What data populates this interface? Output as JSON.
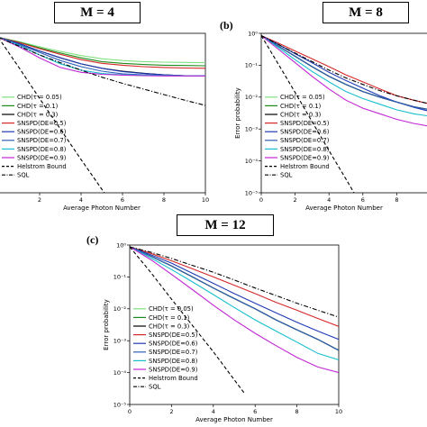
{
  "panels": {
    "a": {
      "title": "M = 4",
      "panel_label": ""
    },
    "b": {
      "title": "M = 8",
      "panel_label": "(b)"
    },
    "c": {
      "title": "M = 12",
      "panel_label": "(c)"
    }
  },
  "chart_data": [
    {
      "panel": "a",
      "type": "line",
      "title": "M = 4",
      "xlabel": "Average Photon Number",
      "ylabel": "",
      "yscale": "log",
      "xlim": [
        0,
        10
      ],
      "ylim": [
        1e-05,
        1
      ],
      "xticks": [
        "2",
        "4",
        "6",
        "8",
        "10"
      ],
      "yticks": [],
      "legend": "lower-left",
      "series": [
        {
          "name": "CHD(τ = 0.05)",
          "color": "#7fe07f",
          "style": "solid",
          "x": [
            0,
            1,
            2,
            3,
            4,
            5,
            6,
            7,
            8,
            9,
            10
          ],
          "y": [
            0.75,
            0.55,
            0.38,
            0.27,
            0.2,
            0.16,
            0.14,
            0.13,
            0.125,
            0.122,
            0.12
          ]
        },
        {
          "name": "CHD(τ = 0.1)",
          "color": "#1a8a1a",
          "style": "solid",
          "x": [
            0,
            1,
            2,
            3,
            4,
            5,
            6,
            7,
            8,
            9,
            10
          ],
          "y": [
            0.75,
            0.53,
            0.35,
            0.24,
            0.17,
            0.13,
            0.115,
            0.105,
            0.1,
            0.098,
            0.096
          ]
        },
        {
          "name": "CHD(τ = 0.3)",
          "color": "#000000",
          "style": "solid",
          "x": [
            0,
            1,
            2,
            3,
            4,
            5,
            6,
            7,
            8,
            9,
            10
          ],
          "y": [
            0.75,
            0.48,
            0.28,
            0.17,
            0.11,
            0.08,
            0.065,
            0.056,
            0.05,
            0.047,
            0.046
          ]
        },
        {
          "name": "SNSPD(DE=0.5)",
          "color": "#d62728",
          "style": "solid",
          "x": [
            0,
            1,
            2,
            3,
            4,
            5,
            6,
            7,
            8,
            9,
            10
          ],
          "y": [
            0.75,
            0.52,
            0.33,
            0.22,
            0.15,
            0.115,
            0.1,
            0.09,
            0.085,
            0.082,
            0.08
          ]
        },
        {
          "name": "SNSPD(DE=0.6)",
          "color": "#1f3ab4",
          "style": "solid",
          "x": [
            0,
            1,
            2,
            3,
            4,
            5,
            6,
            7,
            8,
            9,
            10
          ],
          "y": [
            0.75,
            0.48,
            0.28,
            0.17,
            0.11,
            0.08,
            0.063,
            0.055,
            0.05,
            0.047,
            0.046
          ]
        },
        {
          "name": "SNSPD(DE=0.7)",
          "color": "#2f5fb8",
          "style": "solid",
          "x": [
            0,
            1,
            2,
            3,
            4,
            5,
            6,
            7,
            8,
            9,
            10
          ],
          "y": [
            0.75,
            0.45,
            0.25,
            0.14,
            0.09,
            0.065,
            0.054,
            0.05,
            0.048,
            0.047,
            0.046
          ]
        },
        {
          "name": "SNSPD(DE=0.8)",
          "color": "#17becf",
          "style": "solid",
          "x": [
            0,
            1,
            2,
            3,
            4,
            5,
            6,
            7,
            8,
            9,
            10
          ],
          "y": [
            0.75,
            0.42,
            0.21,
            0.11,
            0.07,
            0.055,
            0.05,
            0.048,
            0.047,
            0.046,
            0.046
          ]
        },
        {
          "name": "SNSPD(DE=0.9)",
          "color": "#c026d3",
          "style": "solid",
          "x": [
            0,
            1,
            2,
            3,
            4,
            5,
            6,
            7,
            8,
            9,
            10
          ],
          "y": [
            0.75,
            0.38,
            0.17,
            0.085,
            0.06,
            0.052,
            0.049,
            0.047,
            0.046,
            0.046,
            0.046
          ]
        },
        {
          "name": "Helstrom Bound",
          "color": "#000000",
          "style": "dashed",
          "x": [
            0,
            1,
            2,
            3,
            4,
            5,
            5.5
          ],
          "y": [
            0.75,
            0.085,
            0.009,
            0.001,
            0.00011,
            1.3e-05,
            4.5e-06
          ]
        },
        {
          "name": "SQL",
          "color": "#000000",
          "style": "dashdot",
          "x": [
            0,
            1,
            2,
            3,
            4,
            5,
            6,
            7,
            8,
            9,
            10
          ],
          "y": [
            0.75,
            0.4,
            0.21,
            0.12,
            0.07,
            0.042,
            0.027,
            0.018,
            0.012,
            0.008,
            0.0055
          ]
        }
      ]
    },
    {
      "panel": "b",
      "type": "line",
      "title": "M = 8",
      "xlabel": "Average Photon Number",
      "ylabel": "Error probability",
      "yscale": "log",
      "xlim": [
        0,
        10
      ],
      "ylim": [
        1e-05,
        1
      ],
      "xticks": [
        "0",
        "2",
        "4",
        "6",
        "8"
      ],
      "yticks": [
        "10⁰",
        "10⁻¹",
        "10⁻²",
        "10⁻³",
        "10⁻⁴",
        "10⁻⁵"
      ],
      "legend": "lower-left",
      "series": [
        {
          "name": "CHD(τ = 0.05)",
          "color": "#7fe07f",
          "style": "solid",
          "x": [
            0,
            1,
            2,
            3,
            4,
            5,
            6,
            7,
            8,
            9,
            10
          ],
          "y": [
            0.85,
            0.4,
            0.19,
            0.09,
            0.045,
            0.025,
            0.015,
            0.01,
            0.007,
            0.005,
            0.004
          ]
        },
        {
          "name": "CHD(τ = 0.1)",
          "color": "#1a8a1a",
          "style": "solid",
          "x": [
            0,
            1,
            2,
            3,
            4,
            5,
            6,
            7,
            8,
            9,
            10
          ],
          "y": [
            0.85,
            0.4,
            0.19,
            0.09,
            0.045,
            0.025,
            0.015,
            0.01,
            0.007,
            0.005,
            0.004
          ]
        },
        {
          "name": "CHD(τ = 0.3)",
          "color": "#000000",
          "style": "solid",
          "x": [
            0,
            1,
            2,
            3,
            4,
            5,
            6,
            7,
            8,
            9,
            10
          ],
          "y": [
            0.85,
            0.4,
            0.19,
            0.09,
            0.045,
            0.025,
            0.015,
            0.01,
            0.007,
            0.005,
            0.004
          ]
        },
        {
          "name": "SNSPD(DE=0.5)",
          "color": "#d62728",
          "style": "solid",
          "x": [
            0,
            1,
            2,
            3,
            4,
            5,
            6,
            7,
            8,
            9,
            10
          ],
          "y": [
            0.85,
            0.5,
            0.28,
            0.16,
            0.09,
            0.05,
            0.03,
            0.018,
            0.011,
            0.008,
            0.006
          ]
        },
        {
          "name": "SNSPD(DE=0.6)",
          "color": "#1f3ab4",
          "style": "solid",
          "x": [
            0,
            1,
            2,
            3,
            4,
            5,
            6,
            7,
            8,
            9,
            10
          ],
          "y": [
            0.85,
            0.45,
            0.23,
            0.12,
            0.06,
            0.033,
            0.019,
            0.011,
            0.007,
            0.0048,
            0.0035
          ]
        },
        {
          "name": "SNSPD(DE=0.7)",
          "color": "#2f5fb8",
          "style": "solid",
          "x": [
            0,
            1,
            2,
            3,
            4,
            5,
            6,
            7,
            8,
            9,
            10
          ],
          "y": [
            0.85,
            0.4,
            0.19,
            0.09,
            0.045,
            0.025,
            0.015,
            0.01,
            0.007,
            0.005,
            0.004
          ]
        },
        {
          "name": "SNSPD(DE=0.8)",
          "color": "#17becf",
          "style": "solid",
          "x": [
            0,
            1,
            2,
            3,
            4,
            5,
            6,
            7,
            8,
            9,
            10
          ],
          "y": [
            0.85,
            0.36,
            0.15,
            0.064,
            0.03,
            0.015,
            0.009,
            0.006,
            0.004,
            0.003,
            0.0025
          ]
        },
        {
          "name": "SNSPD(DE=0.9)",
          "color": "#c026d3",
          "style": "solid",
          "x": [
            0,
            1,
            2,
            3,
            4,
            5,
            6,
            7,
            8,
            9,
            10
          ],
          "y": [
            0.85,
            0.32,
            0.12,
            0.045,
            0.018,
            0.008,
            0.0045,
            0.003,
            0.002,
            0.0015,
            0.0012
          ]
        },
        {
          "name": "Helstrom Bound",
          "color": "#000000",
          "style": "dashed",
          "x": [
            0,
            1,
            2,
            3,
            4,
            5,
            5.5
          ],
          "y": [
            0.85,
            0.11,
            0.014,
            0.0017,
            0.00021,
            2.7e-05,
            9.5e-06
          ]
        },
        {
          "name": "SQL",
          "color": "#000000",
          "style": "dashdot",
          "x": [
            0,
            1,
            2,
            3,
            4,
            5,
            6,
            7,
            8,
            9,
            10
          ],
          "y": [
            0.85,
            0.45,
            0.24,
            0.13,
            0.07,
            0.04,
            0.025,
            0.016,
            0.011,
            0.008,
            0.006
          ]
        }
      ]
    },
    {
      "panel": "c",
      "type": "line",
      "title": "M = 12",
      "xlabel": "Average Photon Number",
      "ylabel": "Error probability",
      "yscale": "log",
      "xlim": [
        0,
        10
      ],
      "ylim": [
        1e-05,
        1
      ],
      "xticks": [
        "0",
        "2",
        "4",
        "6",
        "8",
        "10"
      ],
      "yticks": [
        "10⁰",
        "10⁻¹",
        "10⁻²",
        "10⁻³",
        "10⁻⁴",
        "10⁻⁵"
      ],
      "legend": "lower-left",
      "series": [
        {
          "name": "CHD(τ = 0.05)",
          "color": "#7fe07f",
          "style": "solid",
          "x": [
            0,
            1,
            2,
            3,
            4,
            5,
            6,
            7,
            8,
            9,
            10
          ],
          "y": [
            0.88,
            0.45,
            0.22,
            0.1,
            0.045,
            0.021,
            0.01,
            0.0045,
            0.0022,
            0.0011,
            0.0005
          ]
        },
        {
          "name": "CHD(τ = 0.1)",
          "color": "#1a8a1a",
          "style": "solid",
          "x": [
            0,
            1,
            2,
            3,
            4,
            5,
            6,
            7,
            8,
            9,
            10
          ],
          "y": [
            0.88,
            0.45,
            0.22,
            0.1,
            0.045,
            0.021,
            0.01,
            0.0045,
            0.0022,
            0.0011,
            0.0005
          ]
        },
        {
          "name": "CHD(τ = 0.3)",
          "color": "#000000",
          "style": "solid",
          "x": [
            0,
            1,
            2,
            3,
            4,
            5,
            6,
            7,
            8,
            9,
            10
          ],
          "y": [
            0.88,
            0.45,
            0.22,
            0.1,
            0.045,
            0.021,
            0.01,
            0.0045,
            0.0022,
            0.0011,
            0.0005
          ]
        },
        {
          "name": "SNSPD(DE=0.5)",
          "color": "#d62728",
          "style": "solid",
          "x": [
            0,
            1,
            2,
            3,
            4,
            5,
            6,
            7,
            8,
            9,
            10
          ],
          "y": [
            0.88,
            0.55,
            0.32,
            0.18,
            0.1,
            0.055,
            0.03,
            0.016,
            0.009,
            0.005,
            0.0028
          ]
        },
        {
          "name": "SNSPD(DE=0.6)",
          "color": "#1f3ab4",
          "style": "solid",
          "x": [
            0,
            1,
            2,
            3,
            4,
            5,
            6,
            7,
            8,
            9,
            10
          ],
          "y": [
            0.88,
            0.5,
            0.27,
            0.13,
            0.063,
            0.03,
            0.015,
            0.0075,
            0.0038,
            0.002,
            0.0011
          ]
        },
        {
          "name": "SNSPD(DE=0.7)",
          "color": "#2f5fb8",
          "style": "solid",
          "x": [
            0,
            1,
            2,
            3,
            4,
            5,
            6,
            7,
            8,
            9,
            10
          ],
          "y": [
            0.88,
            0.45,
            0.22,
            0.1,
            0.045,
            0.021,
            0.01,
            0.0045,
            0.0022,
            0.0011,
            0.0005
          ]
        },
        {
          "name": "SNSPD(DE=0.8)",
          "color": "#17becf",
          "style": "solid",
          "x": [
            0,
            1,
            2,
            3,
            4,
            5,
            6,
            7,
            8,
            9,
            10
          ],
          "y": [
            0.88,
            0.4,
            0.17,
            0.07,
            0.028,
            0.011,
            0.0045,
            0.002,
            0.0009,
            0.0004,
            0.00025
          ]
        },
        {
          "name": "SNSPD(DE=0.9)",
          "color": "#c026d3",
          "style": "solid",
          "x": [
            0,
            1,
            2,
            3,
            4,
            5,
            6,
            7,
            8,
            9,
            10
          ],
          "y": [
            0.88,
            0.35,
            0.12,
            0.04,
            0.013,
            0.0045,
            0.0017,
            0.0007,
            0.0003,
            0.00015,
            0.0001
          ]
        },
        {
          "name": "Helstrom Bound",
          "color": "#000000",
          "style": "dashed",
          "x": [
            0,
            1,
            2,
            3,
            4,
            5,
            5.5
          ],
          "y": [
            0.88,
            0.14,
            0.02,
            0.003,
            0.00045,
            6e-05,
            2.2e-05
          ]
        },
        {
          "name": "SQL",
          "color": "#000000",
          "style": "dashdot",
          "x": [
            0,
            1,
            2,
            3,
            4,
            5,
            6,
            7,
            8,
            9,
            10
          ],
          "y": [
            0.88,
            0.6,
            0.38,
            0.23,
            0.14,
            0.08,
            0.045,
            0.026,
            0.015,
            0.009,
            0.0055
          ]
        }
      ]
    }
  ]
}
